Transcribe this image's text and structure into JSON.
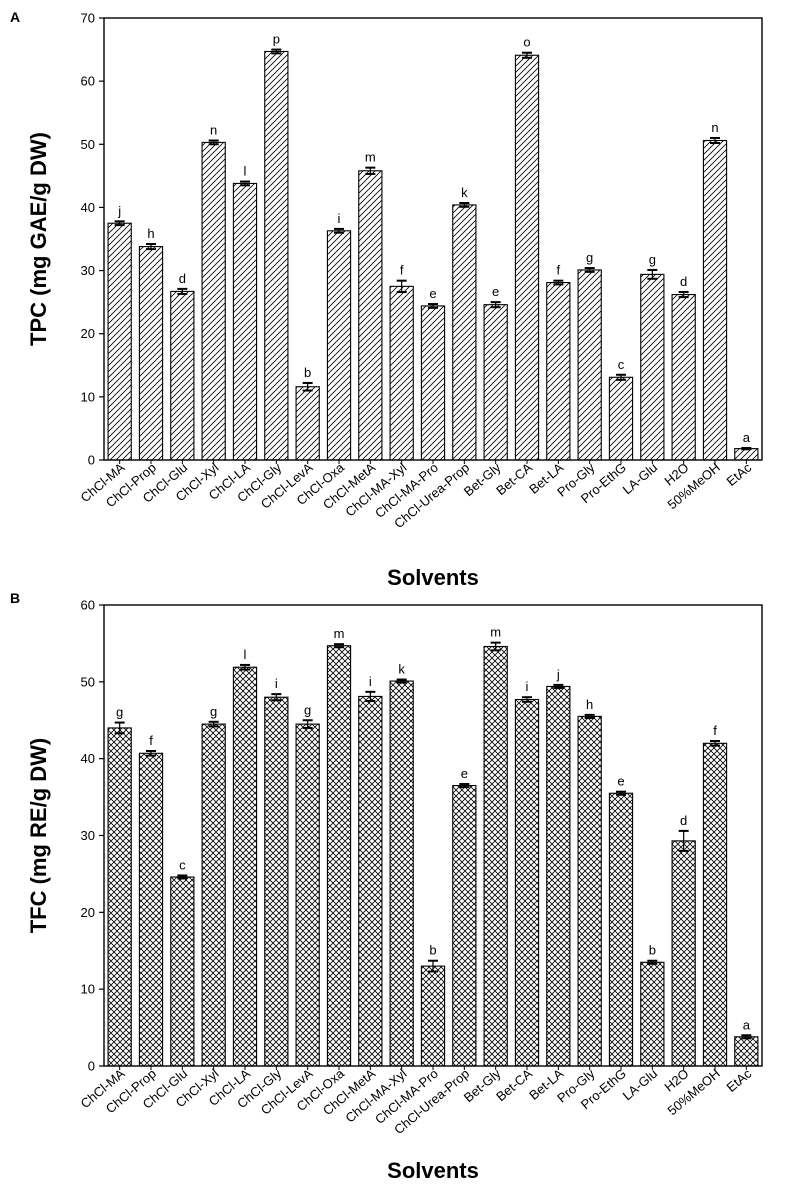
{
  "chart_data": [
    {
      "panel": "A",
      "type": "bar",
      "pattern": "hatch",
      "ylabel": "TPC (mg GAE/g DW)",
      "xlabel": "Solvents",
      "ylim": [
        0,
        70
      ],
      "yticks": [
        0,
        10,
        20,
        30,
        40,
        50,
        60,
        70
      ],
      "categories": [
        "ChCl-MA",
        "ChCl-Prop",
        "ChCl-Glu",
        "ChCl-Xyl",
        "ChCl-LA",
        "ChCl-Gly",
        "ChCl-LevA",
        "ChCl-Oxa",
        "ChCl-MetA",
        "ChCl-MA-Xyl",
        "ChCl-MA-Pro",
        "ChCl-Urea-Prop",
        "Bet-Gly",
        "Bet-CA",
        "Bet-LA",
        "Pro-Gly",
        "Pro-EthG",
        "LA-Glu",
        "H2O",
        "50%MeOH",
        "EtAc"
      ],
      "values": [
        37.5,
        33.8,
        26.7,
        50.3,
        43.8,
        64.7,
        11.6,
        36.3,
        45.8,
        27.5,
        24.4,
        40.4,
        24.6,
        64.1,
        28.1,
        30.1,
        13.1,
        29.4,
        26.2,
        50.6,
        1.8
      ],
      "errors": [
        0.3,
        0.4,
        0.4,
        0.3,
        0.3,
        0.3,
        0.6,
        0.3,
        0.5,
        0.9,
        0.3,
        0.3,
        0.4,
        0.4,
        0.3,
        0.3,
        0.4,
        0.7,
        0.4,
        0.4,
        0.1
      ],
      "letters": [
        "j",
        "h",
        "d",
        "n",
        "l",
        "p",
        "b",
        "i",
        "m",
        "f",
        "e",
        "k",
        "e",
        "o",
        "f",
        "g",
        "c",
        "g",
        "d",
        "n",
        "a"
      ]
    },
    {
      "panel": "B",
      "type": "bar",
      "pattern": "crosshatch",
      "ylabel": "TFC (mg RE/g DW)",
      "xlabel": "Solvents",
      "ylim": [
        0,
        60
      ],
      "yticks": [
        0,
        10,
        20,
        30,
        40,
        50,
        60
      ],
      "categories": [
        "ChCl-MA",
        "ChCl-Prop",
        "ChCl-Glu",
        "ChCl-Xyl",
        "ChCl-LA",
        "ChCl-Gly",
        "ChCl-LevA",
        "ChCl-Oxa",
        "ChCl-MetA",
        "ChCl-MA-Xyl",
        "ChCl-MA-Pro",
        "ChCl-Urea-Prop",
        "Bet-Gly",
        "Bet-CA",
        "Bet-LA",
        "Pro-Gly",
        "Pro-EthG",
        "LA-Glu",
        "H2O",
        "50%MeOH",
        "EtAc"
      ],
      "values": [
        44.0,
        40.7,
        24.6,
        44.5,
        51.9,
        48.0,
        44.5,
        54.7,
        48.1,
        50.1,
        13.0,
        36.5,
        54.6,
        47.7,
        49.4,
        45.5,
        35.5,
        13.5,
        29.3,
        42.0,
        3.8
      ],
      "errors": [
        0.7,
        0.3,
        0.2,
        0.3,
        0.3,
        0.4,
        0.5,
        0.2,
        0.6,
        0.2,
        0.7,
        0.2,
        0.5,
        0.3,
        0.2,
        0.2,
        0.2,
        0.2,
        1.3,
        0.3,
        0.2
      ],
      "letters": [
        "g",
        "f",
        "c",
        "g",
        "l",
        "i",
        "g",
        "m",
        "i",
        "k",
        "b",
        "e",
        "m",
        "i",
        "j",
        "h",
        "e",
        "b",
        "d",
        "f",
        "a"
      ]
    }
  ]
}
